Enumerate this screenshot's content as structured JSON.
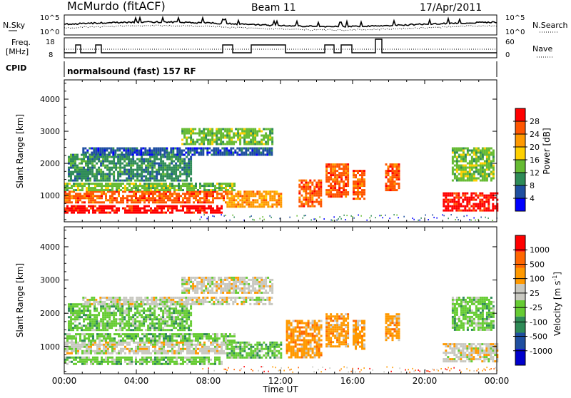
{
  "header": {
    "station": "McMurdo (fitACF)",
    "beam": "Beam 11",
    "date": "17/Apr/2011"
  },
  "top_panels": {
    "nsky_label": "N.Sky",
    "nsky_ticks": [
      "10^5",
      "10^0"
    ],
    "nsearch_label": "N.Search",
    "nsearch_ticks": [
      "10^5",
      "10^0"
    ],
    "freq_label_1": "Freq.",
    "freq_label_2": "[MHz]",
    "freq_ticks": [
      "18",
      "8"
    ],
    "nave_label": "Nave",
    "nave_ticks": [
      "60",
      "0"
    ],
    "cpid_label": "CPID",
    "cpid_text": "normalsound (fast) 157 RF"
  },
  "colors": {
    "power": [
      "#0000ff",
      "#1f4fa0",
      "#2e8b57",
      "#66bb33",
      "#ffd000",
      "#ff9900",
      "#ff5500",
      "#ff0000"
    ],
    "velocity": [
      "#ff0000",
      "#ff6600",
      "#ff9900",
      "#c8c8c0",
      "#66cc33",
      "#2e8b57",
      "#1f4fa0",
      "#0000cc"
    ]
  },
  "chart_data": [
    {
      "type": "heatmap",
      "name": "power",
      "ylabel": "Slant Range [km]",
      "ylim": [
        180,
        4600
      ],
      "yticks": [
        "1000",
        "2000",
        "3000",
        "4000"
      ],
      "xlim": [
        0,
        24
      ],
      "xticks": [
        "00:00",
        "04:00",
        "08:00",
        "12:00",
        "16:00",
        "20:00",
        "00:00"
      ],
      "colorbar_label": "Power [dB]",
      "colorbar_ticks": [
        "4",
        "8",
        "12",
        "16",
        "20",
        "24",
        "28"
      ],
      "echo_regions": [
        {
          "t": [
            0.0,
            8.7
          ],
          "r": [
            450,
            700
          ],
          "level": 7
        },
        {
          "t": [
            0.0,
            9.0
          ],
          "r": [
            800,
            1150
          ],
          "level": 6
        },
        {
          "t": [
            0.0,
            9.5
          ],
          "r": [
            1150,
            1400
          ],
          "level": 3
        },
        {
          "t": [
            0.2,
            7.0
          ],
          "r": [
            1500,
            2300
          ],
          "level": 2
        },
        {
          "t": [
            1.0,
            11.5
          ],
          "r": [
            2300,
            2500
          ],
          "level": 1
        },
        {
          "t": [
            6.5,
            11.5
          ],
          "r": [
            2600,
            3100
          ],
          "level": 3
        },
        {
          "t": [
            9.0,
            12.0
          ],
          "r": [
            650,
            1150
          ],
          "level": 5
        },
        {
          "t": [
            13.0,
            14.2
          ],
          "r": [
            700,
            1500
          ],
          "level": 6
        },
        {
          "t": [
            14.5,
            15.8
          ],
          "r": [
            1000,
            2000
          ],
          "level": 6
        },
        {
          "t": [
            16.0,
            16.6
          ],
          "r": [
            900,
            1800
          ],
          "level": 6
        },
        {
          "t": [
            17.8,
            18.6
          ],
          "r": [
            1200,
            2000
          ],
          "level": 6
        },
        {
          "t": [
            21.0,
            24.0
          ],
          "r": [
            550,
            1100
          ],
          "level": 7
        },
        {
          "t": [
            21.5,
            23.8
          ],
          "r": [
            1500,
            2500
          ],
          "level": 3
        }
      ]
    },
    {
      "type": "heatmap",
      "name": "velocity",
      "ylabel": "Slant Range [km]",
      "ylim": [
        180,
        4600
      ],
      "yticks": [
        "1000",
        "2000",
        "3000",
        "4000"
      ],
      "xlim": [
        0,
        24
      ],
      "xticks": [
        "00:00",
        "04:00",
        "08:00",
        "12:00",
        "16:00",
        "20:00",
        "00:00"
      ],
      "xlabel": "Time UT",
      "colorbar_label": "Velocity [m s^-1]",
      "colorbar_ticks": [
        "1000",
        "500",
        "100",
        "25",
        "-25",
        "-100",
        "-500",
        "-1000"
      ],
      "echo_regions": [
        {
          "t": [
            0.0,
            8.7
          ],
          "r": [
            450,
            700
          ],
          "level": 4
        },
        {
          "t": [
            0.0,
            9.0
          ],
          "r": [
            800,
            1150
          ],
          "level": 3
        },
        {
          "t": [
            0.0,
            9.5
          ],
          "r": [
            1150,
            1400
          ],
          "level": 4
        },
        {
          "t": [
            0.2,
            7.0
          ],
          "r": [
            1500,
            2300
          ],
          "level": 4
        },
        {
          "t": [
            1.0,
            11.5
          ],
          "r": [
            2300,
            2500
          ],
          "level": 3
        },
        {
          "t": [
            6.5,
            11.5
          ],
          "r": [
            2600,
            3100
          ],
          "level": 3
        },
        {
          "t": [
            9.0,
            12.0
          ],
          "r": [
            650,
            1150
          ],
          "level": 4
        },
        {
          "t": [
            12.3,
            14.3
          ],
          "r": [
            700,
            1800
          ],
          "level": 2
        },
        {
          "t": [
            14.5,
            15.8
          ],
          "r": [
            1000,
            2000
          ],
          "level": 2
        },
        {
          "t": [
            16.0,
            16.6
          ],
          "r": [
            900,
            1800
          ],
          "level": 2
        },
        {
          "t": [
            17.8,
            18.6
          ],
          "r": [
            1200,
            2000
          ],
          "level": 2
        },
        {
          "t": [
            21.0,
            24.0
          ],
          "r": [
            550,
            1100
          ],
          "level": 3
        },
        {
          "t": [
            21.5,
            23.8
          ],
          "r": [
            1500,
            2500
          ],
          "level": 4
        }
      ]
    }
  ]
}
